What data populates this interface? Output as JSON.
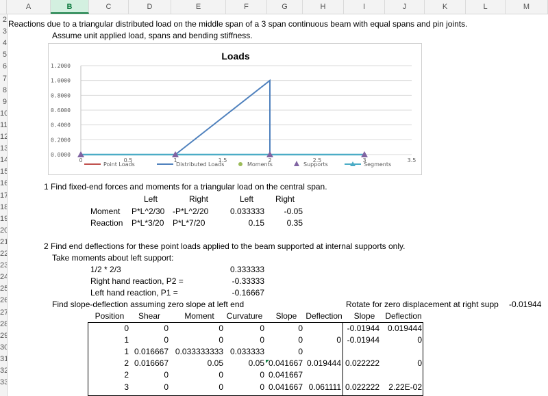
{
  "columns": [
    "A",
    "B",
    "C",
    "D",
    "E",
    "F",
    "G",
    "H",
    "I",
    "J",
    "K",
    "L",
    "M"
  ],
  "rows": [
    "2",
    "3",
    "4",
    "5",
    "6",
    "7",
    "8",
    "9",
    "10",
    "11",
    "12",
    "13",
    "14",
    "15",
    "16",
    "17",
    "18",
    "19",
    "20",
    "21",
    "22",
    "23",
    "24",
    "25",
    "26",
    "27",
    "28",
    "29",
    "30",
    "31",
    "32",
    "33"
  ],
  "title_line": "Reactions due to a triangular distributed load on the middle span of a 3 span continuous beam with equal spans and pin joints.",
  "assume_line": "Assume unit applied load, spans and bending stiffness.",
  "chart_data": {
    "type": "line",
    "title": "Loads",
    "xlim": [
      0,
      3.5
    ],
    "ylim": [
      0,
      1.2
    ],
    "xticks": [
      "0",
      "0.5",
      "1",
      "1.5",
      "2",
      "2.5",
      "3",
      "3.5"
    ],
    "yticks": [
      "0.0000",
      "0.2000",
      "0.4000",
      "0.6000",
      "0.8000",
      "1.0000",
      "1.2000"
    ],
    "grid": true,
    "legend_position": "bottom",
    "series": [
      {
        "name": "Point Loads",
        "color": "#c0504d",
        "points": []
      },
      {
        "name": "Distributed Loads",
        "color": "#4f81bd",
        "points": [
          [
            1,
            0
          ],
          [
            2,
            1
          ],
          [
            2,
            0
          ]
        ]
      },
      {
        "name": "Moments",
        "color": "#9bbb59",
        "points": []
      },
      {
        "name": "Supports",
        "color": "#8064a2",
        "points": [
          [
            0,
            0
          ],
          [
            1,
            0
          ],
          [
            2,
            0
          ],
          [
            3,
            0
          ]
        ]
      },
      {
        "name": "Segments",
        "color": "#4bacc6",
        "points": [
          [
            0,
            0
          ],
          [
            3,
            0
          ]
        ]
      }
    ]
  },
  "step1": {
    "heading": "1 Find fixed-end forces and moments for a triangular load on the central span.",
    "hdr_left": "Left",
    "hdr_right": "Right",
    "hdr_left2": "Left",
    "hdr_right2": "Right",
    "moment_label": "Moment",
    "moment_left": "P*L^2/30",
    "moment_right": "-P*L^2/20",
    "moment_left_val": "0.033333",
    "moment_right_val": "-0.05",
    "reaction_label": "Reaction",
    "reaction_left": "P*L*3/20",
    "reaction_right": "P*L*7/20",
    "reaction_left_val": "0.15",
    "reaction_right_val": "0.35"
  },
  "step2": {
    "heading": "2 Find end deflections for these point loads applied to the beam supported at internal supports only.",
    "take_moments": "Take moments about left support:",
    "half_label": "1/2 * 2/3",
    "half_val": "0.333333",
    "p2_label": "Right hand reaction, P2 =",
    "p2_val": "-0.33333",
    "p1_label": "Left hand reaction, P1 =",
    "p1_val": "-0.16667",
    "slope_heading": "Find slope-deflection assuming zero slope at left end",
    "rotate_label": "Rotate for zero displacement at right supp",
    "rotate_val": "-0.01944"
  },
  "table": {
    "headers": [
      "Position",
      "Shear",
      "Moment",
      "Curvature",
      "Slope",
      "Deflection",
      "Slope",
      "Deflection"
    ],
    "rows": [
      [
        "0",
        "0",
        "0",
        "0",
        "0",
        "",
        "-0.01944",
        "0.019444"
      ],
      [
        "1",
        "0",
        "0",
        "0",
        "0",
        "0",
        "-0.01944",
        "0"
      ],
      [
        "1",
        "0.016667",
        "0.033333333",
        "0.033333",
        "0",
        "",
        "",
        ""
      ],
      [
        "2",
        "0.016667",
        "0.05",
        "0.05",
        "0.041667",
        "0.019444",
        "0.022222",
        "0"
      ],
      [
        "2",
        "0",
        "0",
        "0",
        "0.041667",
        "",
        "",
        ""
      ],
      [
        "3",
        "0",
        "0",
        "0",
        "0.041667",
        "0.061111",
        "0.022222",
        "2.22E-02"
      ]
    ]
  }
}
